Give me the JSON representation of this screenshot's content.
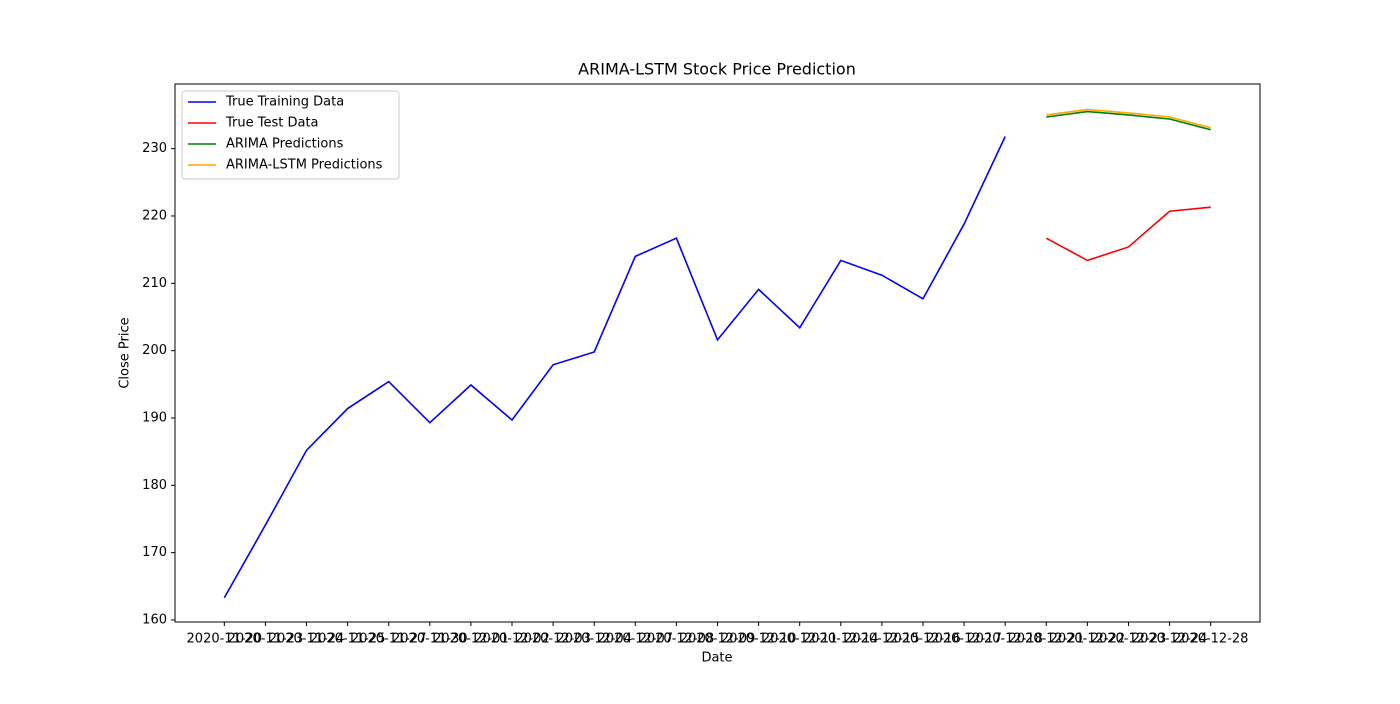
{
  "chart_data": {
    "type": "line",
    "title": "ARIMA-LSTM Stock Price Prediction",
    "x_label": "Date",
    "y_label": "Close Price",
    "categories": [
      "2020-11-20",
      "2020-11-23",
      "2020-11-24",
      "2020-11-25",
      "2020-11-27",
      "2020-11-30",
      "2020-12-01",
      "2020-12-02",
      "2020-12-03",
      "2020-12-04",
      "2020-12-07",
      "2020-12-08",
      "2020-12-09",
      "2020-12-10",
      "2020-12-11",
      "2020-12-14",
      "2020-12-15",
      "2020-12-16",
      "2020-12-17",
      "2020-12-18",
      "2020-12-21",
      "2020-12-22",
      "2020-12-23",
      "2020-12-24",
      "2020-12-28"
    ],
    "series": [
      {
        "name": "True Training Data",
        "color": "#0000ff",
        "values": [
          163.3,
          174.1,
          185.2,
          191.4,
          195.4,
          189.3,
          194.9,
          189.7,
          197.9,
          199.8,
          214.0,
          216.7,
          201.6,
          209.1,
          203.4,
          213.4,
          211.2,
          207.7,
          218.8,
          231.8,
          null,
          null,
          null,
          null,
          null
        ]
      },
      {
        "name": "True Test Data",
        "color": "#ff0000",
        "values": [
          null,
          null,
          null,
          null,
          null,
          null,
          null,
          null,
          null,
          null,
          null,
          null,
          null,
          null,
          null,
          null,
          null,
          null,
          null,
          null,
          216.7,
          213.4,
          215.4,
          220.7,
          221.3
        ]
      },
      {
        "name": "ARIMA Predictions",
        "color": "#008000",
        "values": [
          null,
          null,
          null,
          null,
          null,
          null,
          null,
          null,
          null,
          null,
          null,
          null,
          null,
          null,
          null,
          null,
          null,
          null,
          null,
          null,
          234.7,
          235.5,
          235.0,
          234.4,
          232.8
        ]
      },
      {
        "name": "ARIMA-LSTM Predictions",
        "color": "#ffa500",
        "values": [
          null,
          null,
          null,
          null,
          null,
          null,
          null,
          null,
          null,
          null,
          null,
          null,
          null,
          null,
          null,
          null,
          null,
          null,
          null,
          null,
          235.0,
          235.8,
          235.3,
          234.7,
          233.1
        ]
      }
    ],
    "ylim": [
      159.7,
      239.6
    ],
    "yticks": [
      160,
      170,
      180,
      190,
      200,
      210,
      220,
      230
    ],
    "legend": "upper left",
    "grid": false
  }
}
